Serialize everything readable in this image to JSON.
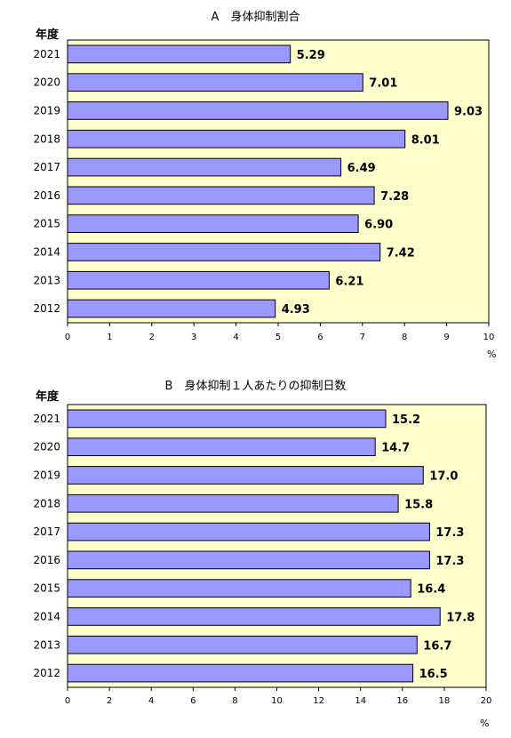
{
  "chart_data": [
    {
      "type": "bar",
      "orientation": "horizontal",
      "title": "A　身体抑制割合",
      "category_header": "年度",
      "xunit": "%",
      "categories": [
        "2021",
        "2020",
        "2019",
        "2018",
        "2017",
        "2016",
        "2015",
        "2014",
        "2013",
        "2012"
      ],
      "values": [
        5.29,
        7.01,
        9.03,
        8.01,
        6.49,
        7.28,
        6.9,
        7.42,
        6.21,
        4.93
      ],
      "value_labels": [
        "5.29",
        "7.01",
        "9.03",
        "8.01",
        "6.49",
        "7.28",
        "6.90",
        "7.42",
        "6.21",
        "4.93"
      ],
      "xlim": [
        0,
        10
      ],
      "xticks": [
        0,
        1,
        2,
        3,
        4,
        5,
        6,
        7,
        8,
        9,
        10
      ],
      "grid": false,
      "colors": {
        "bar": "#9999ff",
        "bar_edge": "#000000",
        "plot_bg": "#ffffcc"
      }
    },
    {
      "type": "bar",
      "orientation": "horizontal",
      "title": "B　身体抑制１人あたりの抑制日数",
      "category_header": "年度",
      "xunit": "%",
      "categories": [
        "2021",
        "2020",
        "2019",
        "2018",
        "2017",
        "2016",
        "2015",
        "2014",
        "2013",
        "2012"
      ],
      "values": [
        15.2,
        14.7,
        17.0,
        15.8,
        17.3,
        17.3,
        16.4,
        17.8,
        16.7,
        16.5
      ],
      "value_labels": [
        "15.2",
        "14.7",
        "17.0",
        "15.8",
        "17.3",
        "17.3",
        "16.4",
        "17.8",
        "16.7",
        "16.5"
      ],
      "xlim": [
        0,
        20
      ],
      "xticks": [
        0,
        2,
        4,
        6,
        8,
        10,
        12,
        14,
        16,
        18,
        20
      ],
      "grid": false,
      "colors": {
        "bar": "#9999ff",
        "bar_edge": "#000000",
        "plot_bg": "#ffffcc"
      }
    }
  ]
}
